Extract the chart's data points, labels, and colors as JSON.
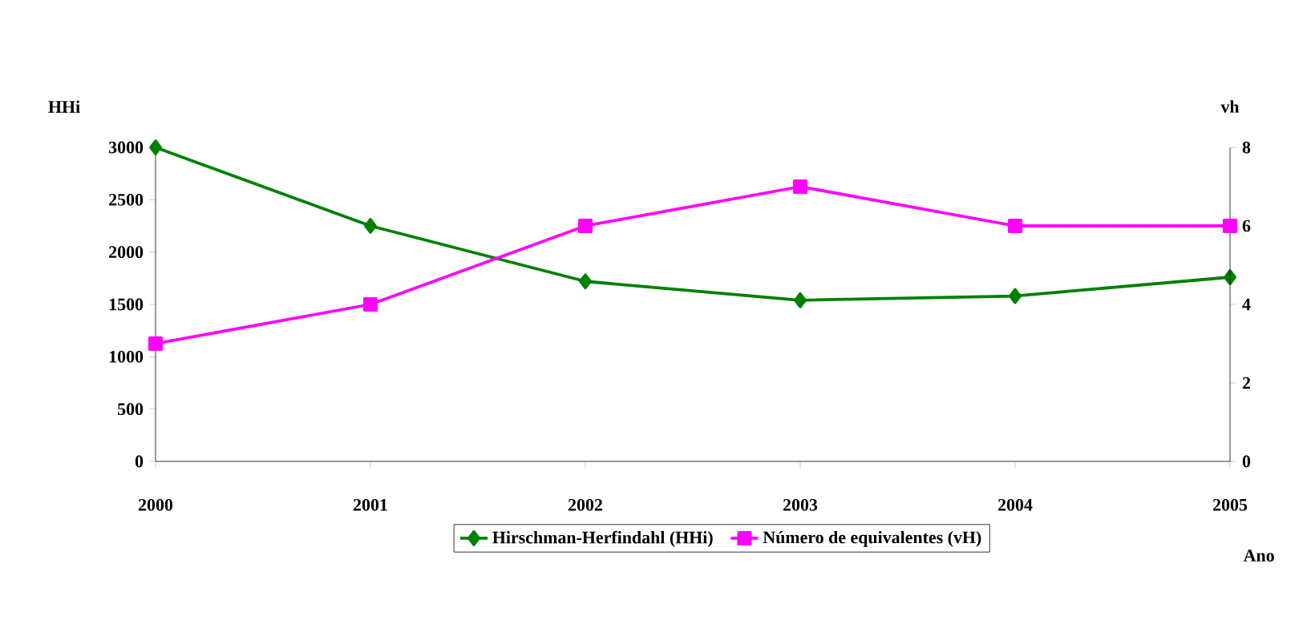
{
  "chart_data": {
    "type": "line",
    "xlabel": "Ano",
    "ylabel": "HHi",
    "y2label": "vh",
    "x": [
      2000,
      2001,
      2002,
      2003,
      2004,
      2005
    ],
    "xlim": [
      2000,
      2005
    ],
    "xticks": [
      2000,
      2001,
      2002,
      2003,
      2004,
      2005
    ],
    "ylim": [
      0,
      3000
    ],
    "yticks": [
      0,
      500,
      1000,
      1500,
      2000,
      2500,
      3000
    ],
    "y2lim": [
      0,
      8
    ],
    "y2ticks": [
      0,
      2,
      4,
      6,
      8
    ],
    "series": [
      {
        "name": "Hirschman-Herfindahl (HHi)",
        "color": "#008000",
        "marker": "diamond",
        "values": [
          3000,
          2250,
          1720,
          1540,
          1580,
          1760
        ]
      },
      {
        "name": "Número de equivalentes (vH)",
        "color": "#ff00ff",
        "marker": "square",
        "axis": "y2",
        "values": [
          3,
          4,
          6,
          7,
          6,
          6
        ]
      }
    ],
    "grid": false,
    "legend": "bottom",
    "line_style": "solid"
  }
}
